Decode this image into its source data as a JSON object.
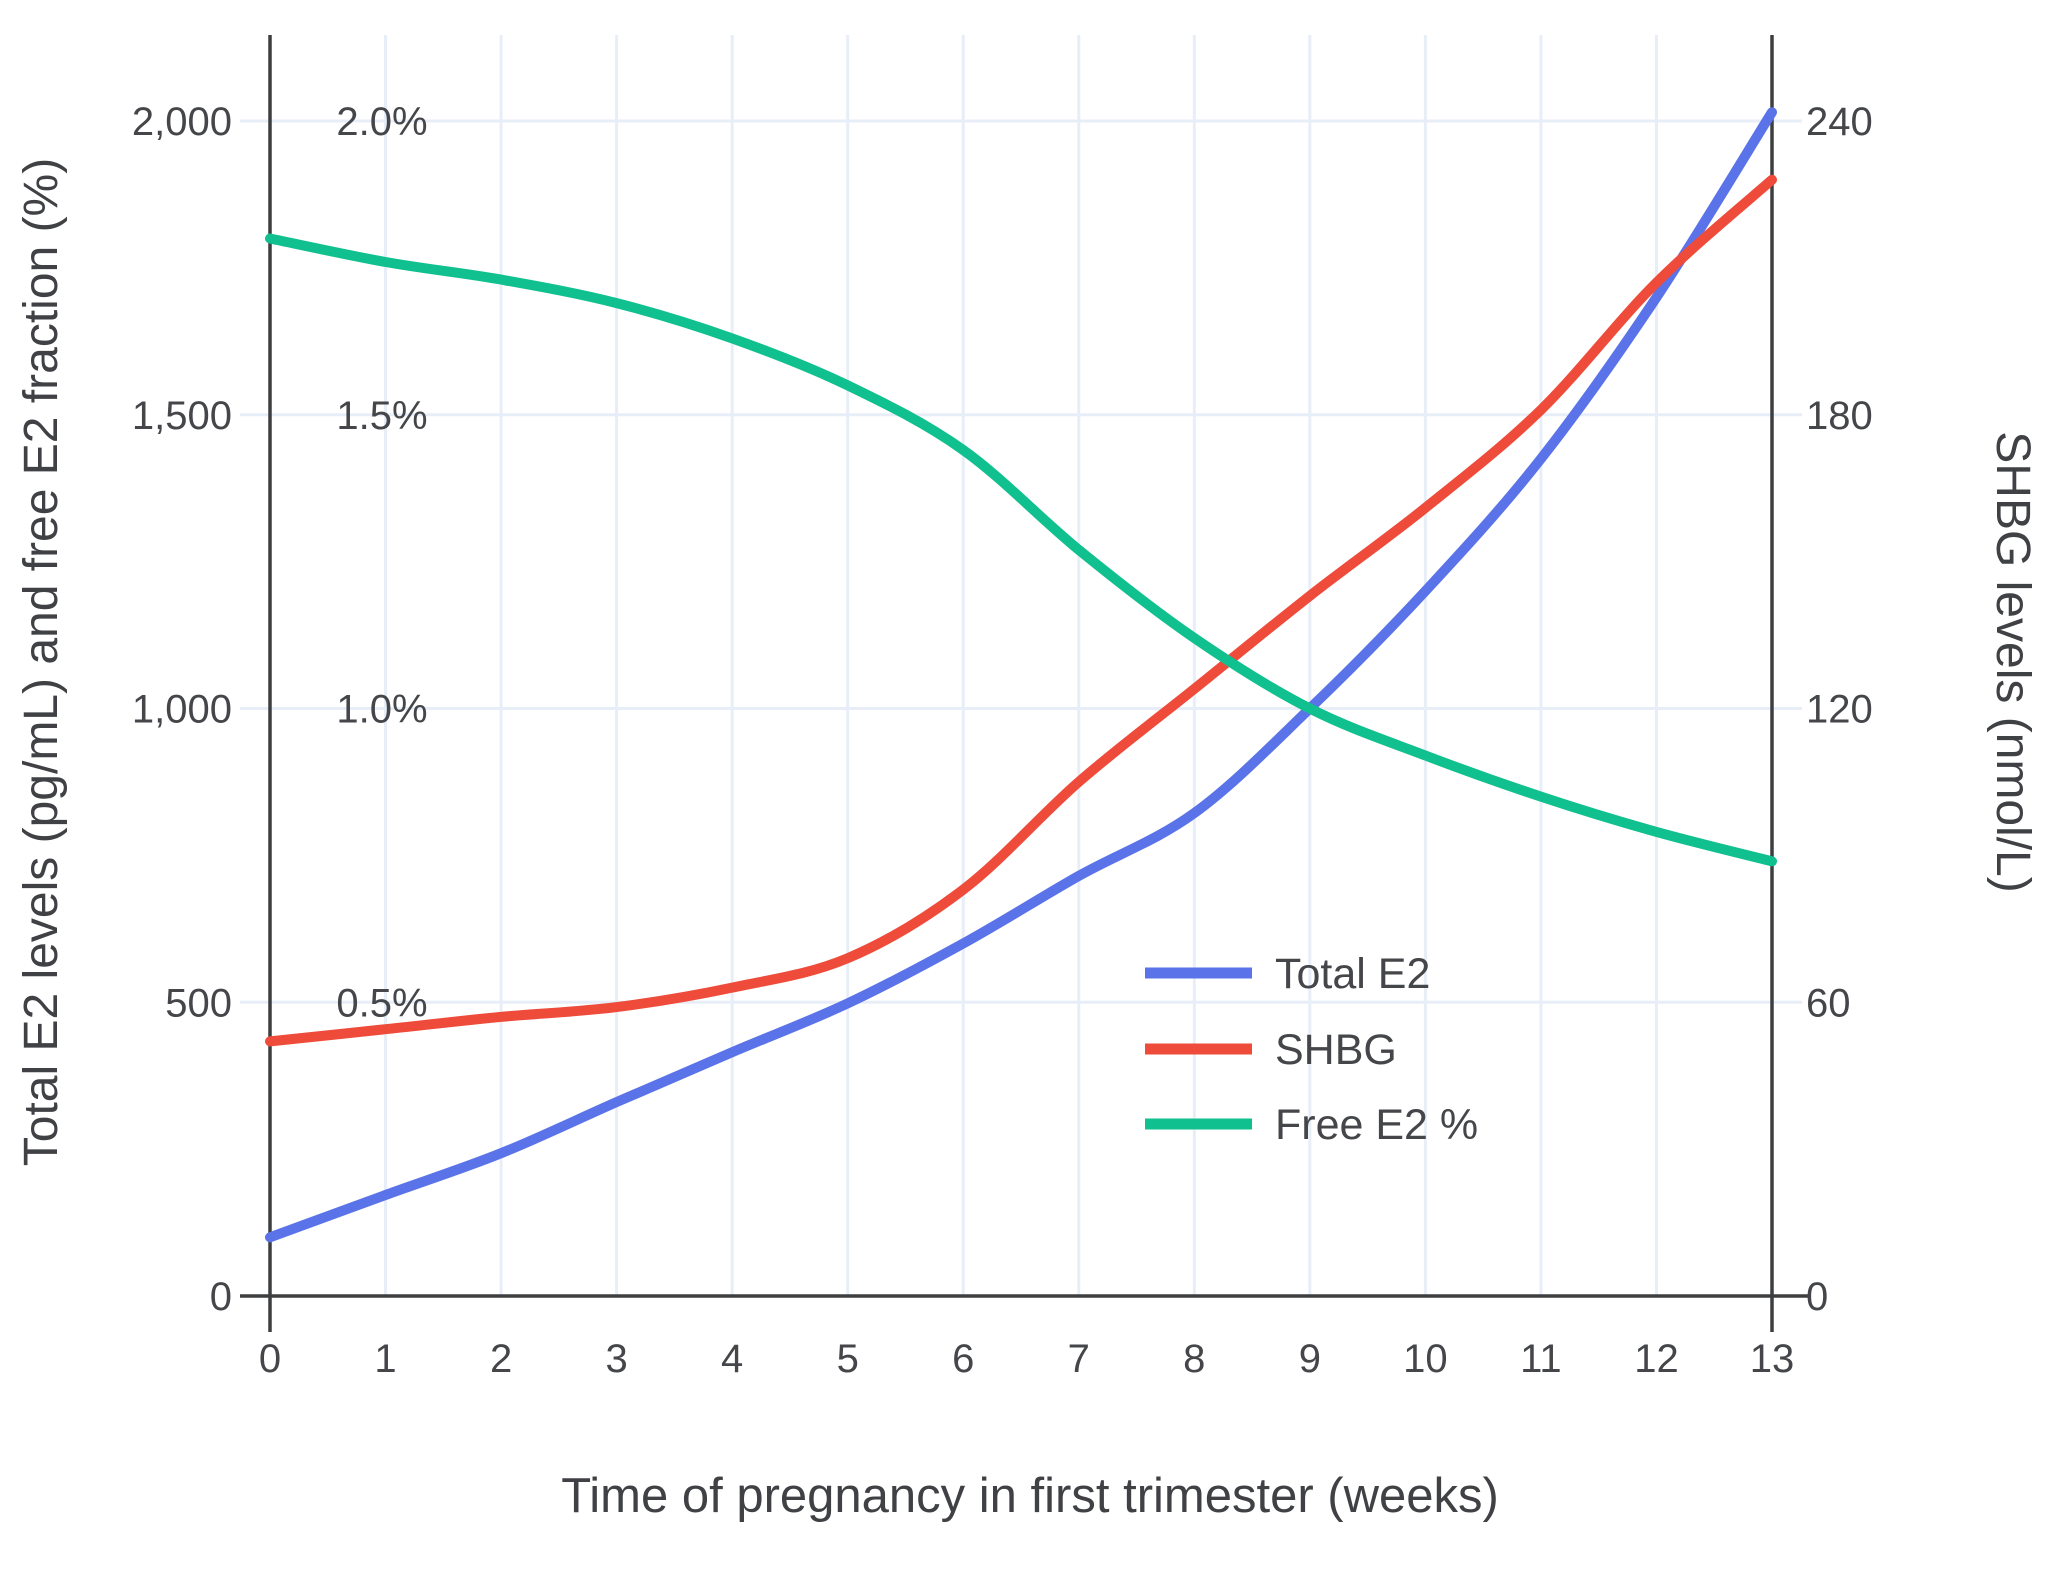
{
  "chart_data": {
    "type": "line",
    "title": "",
    "xlabel": "Time of pregnancy in first trimester (weeks)",
    "ylabel_left": "Total E2 levels (pg/mL) and free E2 fraction (%)",
    "ylabel_right": "SHBG levels (nmol/L)",
    "x": [
      0,
      1,
      2,
      3,
      4,
      5,
      6,
      7,
      8,
      9,
      10,
      11,
      12,
      13
    ],
    "x_ticks": [
      "0",
      "1",
      "2",
      "3",
      "4",
      "5",
      "6",
      "7",
      "8",
      "9",
      "10",
      "11",
      "12",
      "13"
    ],
    "xlim": [
      0,
      13
    ],
    "ylim_left": [
      0,
      2150
    ],
    "ylim_right": [
      0,
      258
    ],
    "grid": true,
    "legend_position": "inside-right-middle",
    "left_axis_ticks": [
      {
        "label": "0",
        "value": 0
      },
      {
        "label": "500",
        "value": 500
      },
      {
        "label": "1,000",
        "value": 1000
      },
      {
        "label": "1,500",
        "value": 1500
      },
      {
        "label": "2,000",
        "value": 2000
      }
    ],
    "percent_axis_ticks": [
      {
        "label": "0.5%",
        "value": 500
      },
      {
        "label": "1.0%",
        "value": 1000
      },
      {
        "label": "1.5%",
        "value": 1500
      },
      {
        "label": "2.0%",
        "value": 2000
      }
    ],
    "right_axis_ticks": [
      {
        "label": "0",
        "value": 0
      },
      {
        "label": "60",
        "value": 500
      },
      {
        "label": "120",
        "value": 1000
      },
      {
        "label": "180",
        "value": 1500
      },
      {
        "label": "240",
        "value": 2000
      }
    ],
    "series": [
      {
        "name": "Total E2",
        "axis": "left",
        "units": "pg/mL",
        "color": "#5b73e8",
        "values": [
          100,
          172,
          243,
          330,
          415,
          498,
          600,
          715,
          822,
          1000,
          1200,
          1425,
          1700,
          2015
        ]
      },
      {
        "name": "SHBG",
        "axis": "right",
        "units": "nmol/L",
        "color": "#ee4b3a",
        "values": [
          52,
          54.5,
          57,
          59,
          63,
          69,
          83,
          105,
          124,
          143,
          161,
          181,
          207,
          228
        ]
      },
      {
        "name": "Free E2 %",
        "axis": "percent",
        "units": "%",
        "color": "#10c08e",
        "values": [
          1.8,
          1.76,
          1.73,
          1.69,
          1.63,
          1.55,
          1.44,
          1.27,
          1.12,
          1.0,
          0.92,
          0.85,
          0.79,
          0.74
        ]
      }
    ]
  },
  "legend": {
    "items": [
      {
        "label": "Total E2",
        "color": "#5b73e8"
      },
      {
        "label": "SHBG",
        "color": "#ee4b3a"
      },
      {
        "label": "Free E2 %",
        "color": "#10c08e"
      }
    ]
  },
  "style_colors": {
    "grid": "#e8eef8",
    "axis": "#3c3e40",
    "text": "#444649"
  }
}
